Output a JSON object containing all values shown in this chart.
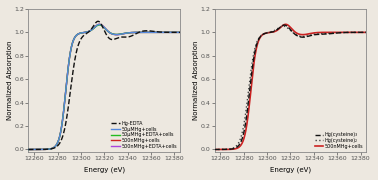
{
  "xlim": [
    12255,
    12385
  ],
  "ylim": [
    -0.02,
    1.2
  ],
  "xticks": [
    12260,
    12280,
    12300,
    12320,
    12340,
    12360,
    12380
  ],
  "xlabel": "Energy (eV)",
  "ylabel": "Normalized Absorption",
  "background": "#ede8e0",
  "panel1_legend": [
    {
      "label": "Hg-EDTA",
      "color": "#111111",
      "lw": 1.0,
      "ls": "--"
    },
    {
      "label": "50μMHg+cells",
      "color": "#5588dd",
      "lw": 1.0,
      "ls": "-"
    },
    {
      "label": "50μMHg+EDTA+cells",
      "color": "#22bb22",
      "lw": 1.0,
      "ls": "-"
    },
    {
      "label": "500nMHg+cells",
      "color": "#cc2222",
      "lw": 1.0,
      "ls": "-"
    },
    {
      "label": "500nMHg+EDTA+cells",
      "color": "#aa44dd",
      "lw": 1.0,
      "ls": "-"
    }
  ],
  "panel2_legend": [
    {
      "label": "Hg(cysteine)₃",
      "color": "#111111",
      "lw": 1.0,
      "ls": "--"
    },
    {
      "label": "Hg(cysteine)₂",
      "color": "#444444",
      "lw": 1.0,
      "ls": ":"
    },
    {
      "label": "500nMHg+cells",
      "color": "#cc2222",
      "lw": 1.2,
      "ls": "-"
    }
  ]
}
